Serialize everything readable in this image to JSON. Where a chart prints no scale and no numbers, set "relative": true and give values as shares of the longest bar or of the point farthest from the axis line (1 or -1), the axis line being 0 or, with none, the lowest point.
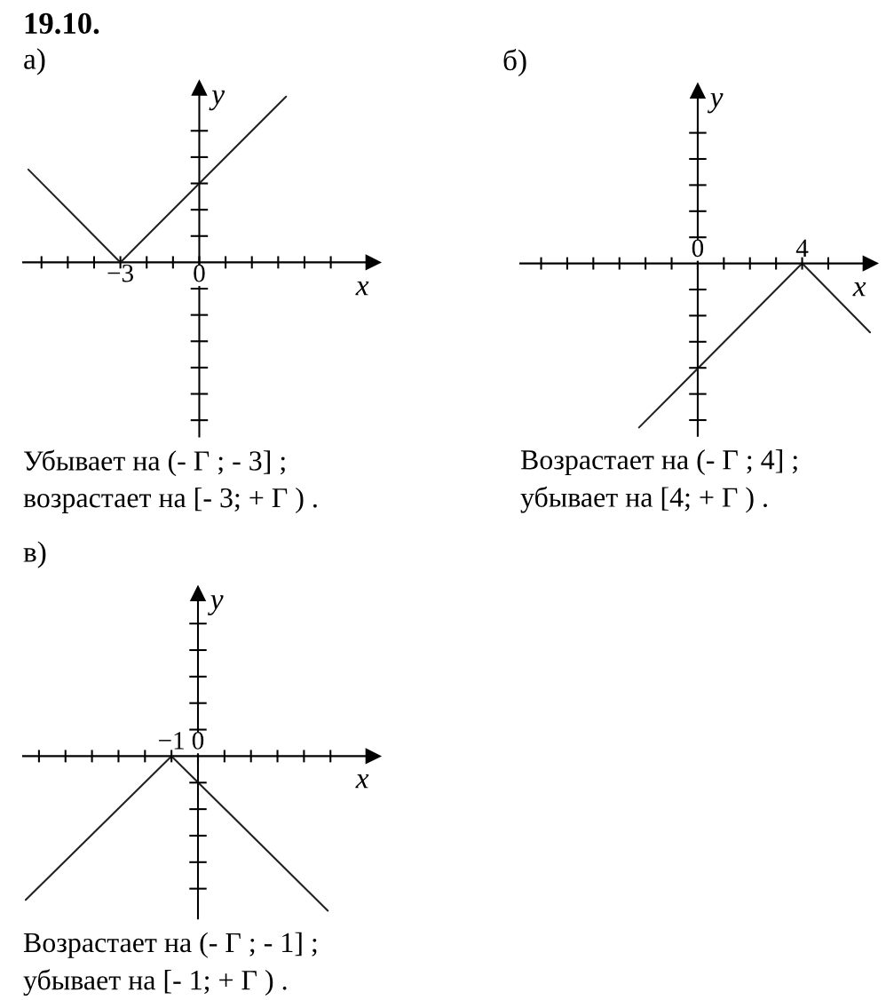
{
  "chart_data": [
    {
      "type": "line",
      "title": "19.10.",
      "subtitle": "а)",
      "xlabel": "x",
      "ylabel": "y",
      "relative": true,
      "x": [
        -6.5,
        -3,
        3.3
      ],
      "values": [
        0.56,
        0,
        1
      ],
      "color": "#222222",
      "xlim": [
        -6.7,
        6.6
      ],
      "xticks": [
        {
          "value": -6,
          "label": null
        },
        {
          "value": -5,
          "label": null
        },
        {
          "value": -4,
          "label": null
        },
        {
          "value": -3,
          "label": "−3"
        },
        {
          "value": -2,
          "label": null
        },
        {
          "value": -1,
          "label": null
        },
        {
          "value": 0,
          "label": "0"
        },
        {
          "value": 1,
          "label": null
        },
        {
          "value": 2,
          "label": null
        },
        {
          "value": 3,
          "label": null
        },
        {
          "value": 4,
          "label": null
        },
        {
          "value": 5,
          "label": null
        }
      ],
      "annotations": [
        "Убывает на (- Г ; - 3] ;",
        "возрастает на [- 3; + Г ) ."
      ]
    },
    {
      "type": "line",
      "subtitle": "б)",
      "xlabel": "x",
      "ylabel": "y",
      "relative": true,
      "x": [
        -2.25,
        4,
        6.6
      ],
      "values": [
        -1,
        0,
        -0.42
      ],
      "color": "#222222",
      "xlim": [
        -6.8,
        6.6
      ],
      "xticks": [
        {
          "value": -6,
          "label": null
        },
        {
          "value": -5,
          "label": null
        },
        {
          "value": -4,
          "label": null
        },
        {
          "value": -3,
          "label": null
        },
        {
          "value": -2,
          "label": null
        },
        {
          "value": -1,
          "label": null
        },
        {
          "value": 0,
          "label": "0"
        },
        {
          "value": 1,
          "label": null
        },
        {
          "value": 2,
          "label": null
        },
        {
          "value": 3,
          "label": null
        },
        {
          "value": 4,
          "label": "4"
        },
        {
          "value": 5,
          "label": null
        }
      ],
      "annotations": [
        "Возрастает на (- Г ; 4] ;",
        "убывает на [4; + Г ) ."
      ]
    },
    {
      "type": "line",
      "subtitle": "в)",
      "xlabel": "x",
      "ylabel": "y",
      "relative": true,
      "x": [
        -6.5,
        -1,
        4.9
      ],
      "values": [
        -0.93,
        0,
        -1
      ],
      "color": "#222222",
      "xlim": [
        -6.6,
        6.6
      ],
      "xticks": [
        {
          "value": -6,
          "label": null
        },
        {
          "value": -5,
          "label": null
        },
        {
          "value": -4,
          "label": null
        },
        {
          "value": -3,
          "label": null
        },
        {
          "value": -2,
          "label": null
        },
        {
          "value": -1,
          "label": "−1"
        },
        {
          "value": 0,
          "label": "0"
        },
        {
          "value": 1,
          "label": null
        },
        {
          "value": 2,
          "label": null
        },
        {
          "value": 3,
          "label": null
        },
        {
          "value": 4,
          "label": null
        },
        {
          "value": 5,
          "label": null
        }
      ],
      "annotations": [
        "Возрастает на (- Г ; - 1] ;",
        "убывает на [- 1; + Г ) ."
      ]
    }
  ]
}
